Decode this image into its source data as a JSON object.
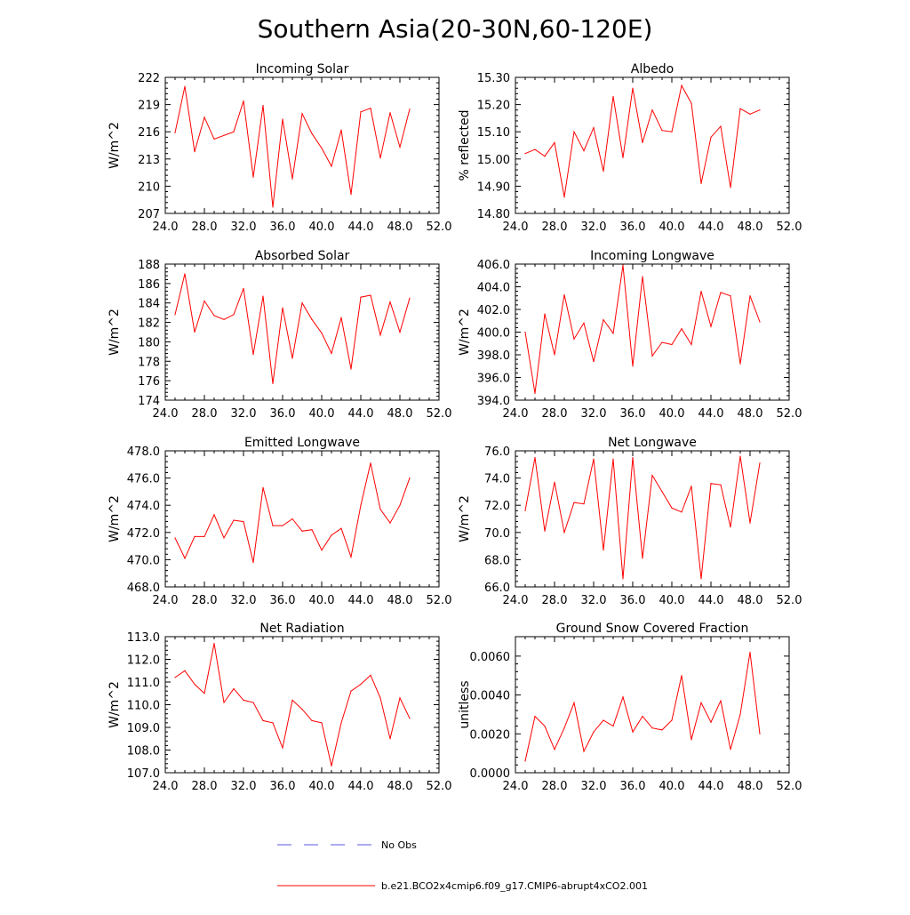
{
  "page_title": "Southern Asia(20-30N,60-120E)",
  "colors": {
    "model": "#ff0000",
    "obs": "#5a5adf",
    "axis": "#000000"
  },
  "legend": {
    "items": [
      {
        "label": "No Obs",
        "style": "dashed",
        "color": "#5a5adf"
      },
      {
        "label": "b.e21.BCO2x4cmip6.f09_g17.CMIP6-abrupt4xCO2.001",
        "style": "solid",
        "color": "#ff0000"
      }
    ]
  },
  "chart_data": [
    {
      "type": "line",
      "title": "Incoming Solar",
      "ylabel": "W/m^2",
      "xlim": [
        24,
        52
      ],
      "ylim": [
        207,
        222
      ],
      "xticks": [
        24,
        28,
        32,
        36,
        40,
        44,
        48,
        52
      ],
      "xtick_labels": [
        "24.0",
        "28.0",
        "32.0",
        "36.0",
        "40.0",
        "44.0",
        "48.0",
        "52.0"
      ],
      "yticks": [
        207,
        210,
        213,
        216,
        219,
        222
      ],
      "ytick_labels": [
        "207",
        "210",
        "213",
        "216",
        "219",
        "222"
      ],
      "x": [
        25,
        26,
        27,
        28,
        29,
        30,
        31,
        32,
        33,
        34,
        35,
        36,
        37,
        38,
        39,
        40,
        41,
        42,
        43,
        44,
        45,
        46,
        47,
        48,
        49
      ],
      "series": [
        {
          "name": "b.e21.BCO2x4cmip6.f09_g17.CMIP6-abrupt4xCO2.001",
          "values": [
            215.9,
            221.0,
            213.8,
            217.6,
            215.2,
            215.6,
            216.0,
            219.4,
            211.0,
            218.9,
            207.7,
            217.4,
            210.8,
            218.0,
            215.8,
            214.2,
            212.2,
            216.2,
            209.1,
            218.2,
            218.6,
            213.1,
            218.1,
            214.3,
            218.5
          ]
        }
      ]
    },
    {
      "type": "line",
      "title": "Albedo",
      "ylabel": "% reflected",
      "xlim": [
        24,
        52
      ],
      "ylim": [
        14.8,
        15.3
      ],
      "xticks": [
        24,
        28,
        32,
        36,
        40,
        44,
        48,
        52
      ],
      "xtick_labels": [
        "24.0",
        "28.0",
        "32.0",
        "36.0",
        "40.0",
        "44.0",
        "48.0",
        "52.0"
      ],
      "yticks": [
        14.8,
        14.9,
        15.0,
        15.1,
        15.2,
        15.3
      ],
      "ytick_labels": [
        "14.80",
        "14.90",
        "15.00",
        "15.10",
        "15.20",
        "15.30"
      ],
      "x": [
        25,
        26,
        27,
        28,
        29,
        30,
        31,
        32,
        33,
        34,
        35,
        36,
        37,
        38,
        39,
        40,
        41,
        42,
        43,
        44,
        45,
        46,
        47,
        48,
        49
      ],
      "series": [
        {
          "name": "b.e21.BCO2x4cmip6.f09_g17.CMIP6-abrupt4xCO2.001",
          "values": [
            15.02,
            15.035,
            15.01,
            15.06,
            14.86,
            15.1,
            15.03,
            15.115,
            14.955,
            15.23,
            15.005,
            15.26,
            15.06,
            15.18,
            15.105,
            15.1,
            15.27,
            15.205,
            14.91,
            15.08,
            15.12,
            14.895,
            15.185,
            15.165,
            15.18
          ]
        }
      ]
    },
    {
      "type": "line",
      "title": "Absorbed Solar",
      "ylabel": "W/m^2",
      "xlim": [
        24,
        52
      ],
      "ylim": [
        174,
        188
      ],
      "xticks": [
        24,
        28,
        32,
        36,
        40,
        44,
        48,
        52
      ],
      "xtick_labels": [
        "24.0",
        "28.0",
        "32.0",
        "36.0",
        "40.0",
        "44.0",
        "48.0",
        "52.0"
      ],
      "yticks": [
        174,
        176,
        178,
        180,
        182,
        184,
        186,
        188
      ],
      "ytick_labels": [
        "174",
        "176",
        "178",
        "180",
        "182",
        "184",
        "186",
        "188"
      ],
      "x": [
        25,
        26,
        27,
        28,
        29,
        30,
        31,
        32,
        33,
        34,
        35,
        36,
        37,
        38,
        39,
        40,
        41,
        42,
        43,
        44,
        45,
        46,
        47,
        48,
        49
      ],
      "series": [
        {
          "name": "b.e21.BCO2x4cmip6.f09_g17.CMIP6-abrupt4xCO2.001",
          "values": [
            182.8,
            187.0,
            181.0,
            184.2,
            182.7,
            182.3,
            182.8,
            185.5,
            178.7,
            184.7,
            175.7,
            183.5,
            178.3,
            184.0,
            182.3,
            180.9,
            178.8,
            182.5,
            177.2,
            184.6,
            184.8,
            180.7,
            184.1,
            181.0,
            184.5
          ]
        }
      ]
    },
    {
      "type": "line",
      "title": "Incoming Longwave",
      "ylabel": "W/m^2",
      "xlim": [
        24,
        52
      ],
      "ylim": [
        394,
        406
      ],
      "xticks": [
        24,
        28,
        32,
        36,
        40,
        44,
        48,
        52
      ],
      "xtick_labels": [
        "24.0",
        "28.0",
        "32.0",
        "36.0",
        "40.0",
        "44.0",
        "48.0",
        "52.0"
      ],
      "yticks": [
        394,
        396,
        398,
        400,
        402,
        404,
        406
      ],
      "ytick_labels": [
        "394.0",
        "396.0",
        "398.0",
        "400.0",
        "402.0",
        "404.0",
        "406.0"
      ],
      "x": [
        25,
        26,
        27,
        28,
        29,
        30,
        31,
        32,
        33,
        34,
        35,
        36,
        37,
        38,
        39,
        40,
        41,
        42,
        43,
        44,
        45,
        46,
        47,
        48,
        49
      ],
      "series": [
        {
          "name": "b.e21.BCO2x4cmip6.f09_g17.CMIP6-abrupt4xCO2.001",
          "values": [
            400.0,
            394.6,
            401.6,
            398.0,
            403.3,
            399.4,
            400.8,
            397.4,
            401.1,
            399.9,
            405.9,
            397.0,
            404.9,
            397.9,
            399.1,
            398.9,
            400.3,
            398.9,
            403.6,
            400.5,
            403.5,
            403.2,
            397.2,
            403.2,
            400.9
          ]
        }
      ]
    },
    {
      "type": "line",
      "title": "Emitted Longwave",
      "ylabel": "W/m^2",
      "xlim": [
        24,
        52
      ],
      "ylim": [
        468,
        478
      ],
      "xticks": [
        24,
        28,
        32,
        36,
        40,
        44,
        48,
        52
      ],
      "xtick_labels": [
        "24.0",
        "28.0",
        "32.0",
        "36.0",
        "40.0",
        "44.0",
        "48.0",
        "52.0"
      ],
      "yticks": [
        468,
        470,
        472,
        474,
        476,
        478
      ],
      "ytick_labels": [
        "468.0",
        "470.0",
        "472.0",
        "474.0",
        "476.0",
        "478.0"
      ],
      "x": [
        25,
        26,
        27,
        28,
        29,
        30,
        31,
        32,
        33,
        34,
        35,
        36,
        37,
        38,
        39,
        40,
        41,
        42,
        43,
        44,
        45,
        46,
        47,
        48,
        49
      ],
      "series": [
        {
          "name": "b.e21.BCO2x4cmip6.f09_g17.CMIP6-abrupt4xCO2.001",
          "values": [
            471.6,
            470.1,
            471.7,
            471.7,
            473.3,
            471.6,
            472.9,
            472.8,
            469.8,
            475.3,
            472.5,
            472.5,
            473.0,
            472.1,
            472.2,
            470.7,
            471.8,
            472.3,
            470.2,
            474.0,
            477.1,
            473.7,
            472.7,
            474.0,
            476.0
          ]
        }
      ]
    },
    {
      "type": "line",
      "title": "Net Longwave",
      "ylabel": "W/m^2",
      "xlim": [
        24,
        52
      ],
      "ylim": [
        66,
        76
      ],
      "xticks": [
        24,
        28,
        32,
        36,
        40,
        44,
        48,
        52
      ],
      "xtick_labels": [
        "24.0",
        "28.0",
        "32.0",
        "36.0",
        "40.0",
        "44.0",
        "48.0",
        "52.0"
      ],
      "yticks": [
        66,
        68,
        70,
        72,
        74,
        76
      ],
      "ytick_labels": [
        "66.0",
        "68.0",
        "70.0",
        "72.0",
        "74.0",
        "76.0"
      ],
      "x": [
        25,
        26,
        27,
        28,
        29,
        30,
        31,
        32,
        33,
        34,
        35,
        36,
        37,
        38,
        39,
        40,
        41,
        42,
        43,
        44,
        45,
        46,
        47,
        48,
        49
      ],
      "series": [
        {
          "name": "b.e21.BCO2x4cmip6.f09_g17.CMIP6-abrupt4xCO2.001",
          "values": [
            71.6,
            75.5,
            70.1,
            73.7,
            70.0,
            72.2,
            72.1,
            75.4,
            68.7,
            75.4,
            66.6,
            75.5,
            68.1,
            74.2,
            73.0,
            71.8,
            71.5,
            73.4,
            66.6,
            73.6,
            73.5,
            70.4,
            75.6,
            70.7,
            75.1
          ]
        }
      ]
    },
    {
      "type": "line",
      "title": "Net Radiation",
      "ylabel": "W/m^2",
      "xlim": [
        24,
        52
      ],
      "ylim": [
        107,
        113
      ],
      "xticks": [
        24,
        28,
        32,
        36,
        40,
        44,
        48,
        52
      ],
      "xtick_labels": [
        "24.0",
        "28.0",
        "32.0",
        "36.0",
        "40.0",
        "44.0",
        "48.0",
        "52.0"
      ],
      "yticks": [
        107,
        108,
        109,
        110,
        111,
        112,
        113
      ],
      "ytick_labels": [
        "107.0",
        "108.0",
        "109.0",
        "110.0",
        "111.0",
        "112.0",
        "113.0"
      ],
      "x": [
        25,
        26,
        27,
        28,
        29,
        30,
        31,
        32,
        33,
        34,
        35,
        36,
        37,
        38,
        39,
        40,
        41,
        42,
        43,
        44,
        45,
        46,
        47,
        48,
        49
      ],
      "series": [
        {
          "name": "b.e21.BCO2x4cmip6.f09_g17.CMIP6-abrupt4xCO2.001",
          "values": [
            111.2,
            111.5,
            110.9,
            110.5,
            112.7,
            110.1,
            110.7,
            110.2,
            110.1,
            109.3,
            109.2,
            108.1,
            110.2,
            109.8,
            109.3,
            109.2,
            107.3,
            109.2,
            110.6,
            110.9,
            111.3,
            110.3,
            108.5,
            110.3,
            109.4
          ]
        }
      ]
    },
    {
      "type": "line",
      "title": "Ground Snow Covered Fraction",
      "ylabel": "unitless",
      "xlim": [
        24,
        52
      ],
      "ylim": [
        0,
        0.007
      ],
      "xticks": [
        24,
        28,
        32,
        36,
        40,
        44,
        48,
        52
      ],
      "xtick_labels": [
        "24.0",
        "28.0",
        "32.0",
        "36.0",
        "40.0",
        "44.0",
        "48.0",
        "52.0"
      ],
      "yticks": [
        0,
        0.002,
        0.004,
        0.006
      ],
      "ytick_labels": [
        "0.0000",
        "0.0020",
        "0.0040",
        "0.0060"
      ],
      "x": [
        25,
        26,
        27,
        28,
        29,
        30,
        31,
        32,
        33,
        34,
        35,
        36,
        37,
        38,
        39,
        40,
        41,
        42,
        43,
        44,
        45,
        46,
        47,
        48,
        49
      ],
      "series": [
        {
          "name": "b.e21.BCO2x4cmip6.f09_g17.CMIP6-abrupt4xCO2.001",
          "values": [
            0.0006,
            0.0029,
            0.0024,
            0.0012,
            0.0023,
            0.0036,
            0.0011,
            0.0021,
            0.0027,
            0.0024,
            0.0039,
            0.0021,
            0.0029,
            0.0023,
            0.0022,
            0.0027,
            0.005,
            0.0017,
            0.0036,
            0.0026,
            0.0037,
            0.0012,
            0.003,
            0.0062,
            0.002
          ]
        }
      ]
    }
  ]
}
